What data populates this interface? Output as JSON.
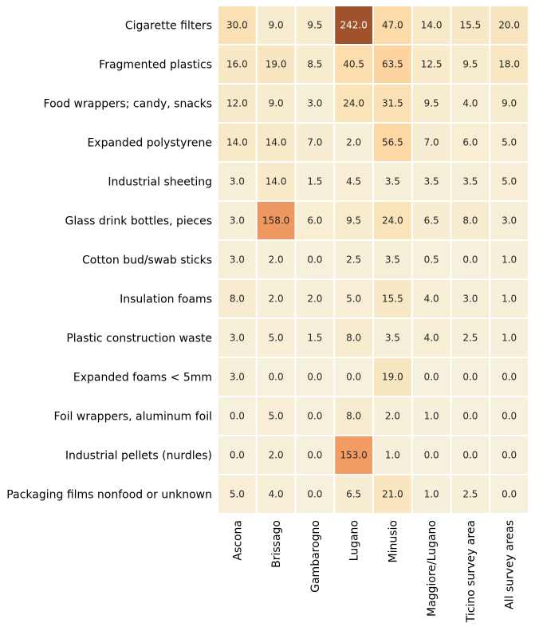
{
  "chart_data": {
    "type": "heatmap",
    "title": "",
    "xlabel": "",
    "ylabel": "",
    "columns": [
      "Ascona",
      "Brissago",
      "Gambarogno",
      "Lugano",
      "Minusio",
      "Maggiore/Lugano",
      "Ticino survey area",
      "All survey areas"
    ],
    "rows": [
      "Cigarette filters",
      "Fragmented plastics",
      "Food wrappers; candy, snacks",
      "Expanded polystyrene",
      "Industrial sheeting",
      "Glass drink bottles, pieces",
      "Cotton bud/swab sticks",
      "Insulation foams",
      "Plastic construction waste",
      "Expanded foams < 5mm",
      "Foil wrappers, aluminum foil",
      "Industrial pellets (nurdles)",
      "Packaging films nonfood or unknown"
    ],
    "values": [
      [
        30.0,
        9.0,
        9.5,
        242.0,
        47.0,
        14.0,
        15.5,
        20.0
      ],
      [
        16.0,
        19.0,
        8.5,
        40.5,
        63.5,
        12.5,
        9.5,
        18.0
      ],
      [
        12.0,
        9.0,
        3.0,
        24.0,
        31.5,
        9.5,
        4.0,
        9.0
      ],
      [
        14.0,
        14.0,
        7.0,
        2.0,
        56.5,
        7.0,
        6.0,
        5.0
      ],
      [
        3.0,
        14.0,
        1.5,
        4.5,
        3.5,
        3.5,
        3.5,
        5.0
      ],
      [
        3.0,
        158.0,
        6.0,
        9.5,
        24.0,
        6.5,
        8.0,
        3.0
      ],
      [
        3.0,
        2.0,
        0.0,
        2.5,
        3.5,
        0.5,
        0.0,
        1.0
      ],
      [
        8.0,
        2.0,
        2.0,
        5.0,
        15.5,
        4.0,
        3.0,
        1.0
      ],
      [
        3.0,
        5.0,
        1.5,
        8.0,
        3.5,
        4.0,
        2.5,
        1.0
      ],
      [
        3.0,
        0.0,
        0.0,
        0.0,
        19.0,
        0.0,
        0.0,
        0.0
      ],
      [
        0.0,
        5.0,
        0.0,
        8.0,
        2.0,
        1.0,
        0.0,
        0.0
      ],
      [
        0.0,
        2.0,
        0.0,
        153.0,
        1.0,
        0.0,
        0.0,
        0.0
      ],
      [
        5.0,
        4.0,
        0.0,
        6.5,
        21.0,
        1.0,
        2.5,
        0.0
      ]
    ],
    "value_format": "0.0",
    "colormap": [
      "#f6f1dc",
      "#f9e3b9",
      "#fdd5a1",
      "#f59d65",
      "#a0522d"
    ],
    "grid": true,
    "legend": "none"
  }
}
